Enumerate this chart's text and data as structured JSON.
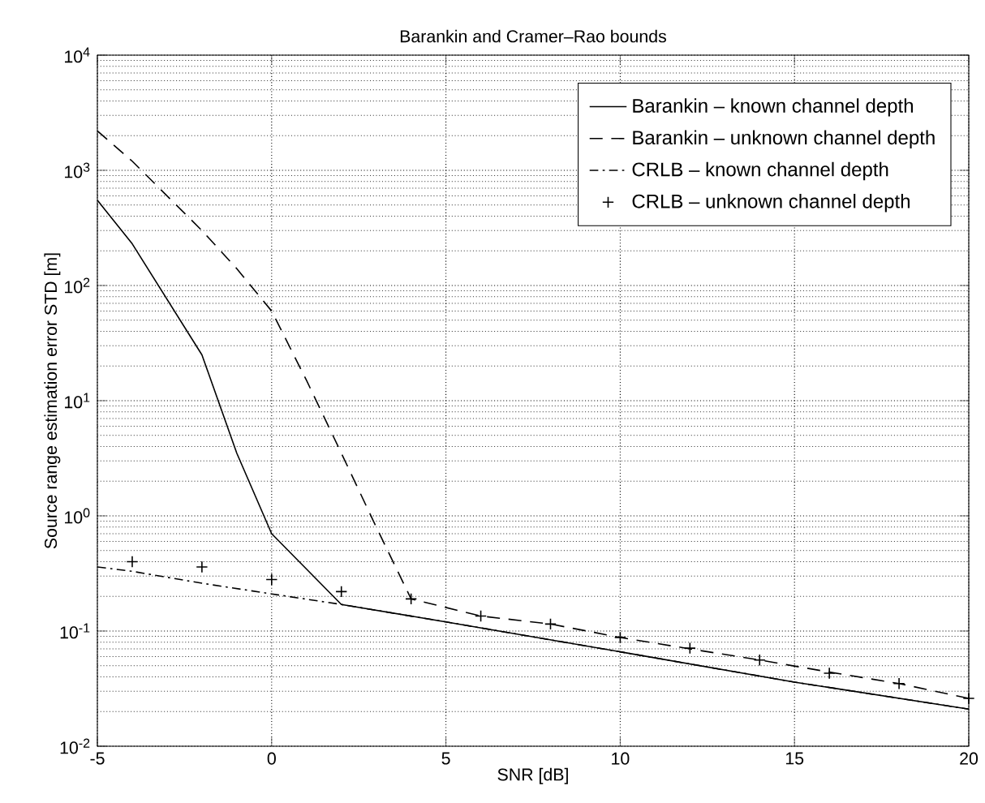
{
  "chart_data": {
    "type": "line",
    "title": "Barankin and Cramer–Rao bounds",
    "xlabel": "SNR [dB]",
    "ylabel": "Source range estimation error STD [m]",
    "xlim": [
      -5,
      20
    ],
    "xticks": [
      -5,
      0,
      5,
      10,
      15,
      20
    ],
    "ylim": [
      0.01,
      10000
    ],
    "yticks": [
      {
        "value": 0.01,
        "label": "10$^{-2}$"
      },
      {
        "value": 0.1,
        "label": "10$^{-1}$"
      },
      {
        "value": 1,
        "label": "10$^{0}$"
      },
      {
        "value": 10,
        "label": "10$^{1}$"
      },
      {
        "value": 100,
        "label": "10$^{2}$"
      },
      {
        "value": 1000,
        "label": "10$^{3}$"
      },
      {
        "value": 10000,
        "label": "10$^{4}$"
      }
    ],
    "log": "y",
    "grid": true,
    "legend": "top right",
    "series": [
      {
        "name": "Barankin – known channel depth",
        "color": "#000000",
        "line_style": "solid",
        "x": [
          -5,
          -4,
          -2,
          -1,
          0,
          2,
          5,
          10,
          15,
          20
        ],
        "values": [
          550,
          230,
          25,
          3.5,
          0.7,
          0.17,
          0.12,
          0.066,
          0.036,
          0.021
        ]
      },
      {
        "name": "Barankin – unknown channel depth",
        "color": "#000000",
        "line_style": "dashed",
        "x": [
          -5,
          -4,
          -2,
          -1,
          0,
          1,
          2,
          3,
          4,
          6,
          8,
          10,
          12,
          14,
          16,
          18,
          20
        ],
        "values": [
          2200,
          1200,
          300,
          140,
          60,
          15,
          3.5,
          0.8,
          0.19,
          0.135,
          0.115,
          0.088,
          0.07,
          0.056,
          0.044,
          0.035,
          0.026
        ]
      },
      {
        "name": "CRLB – known channel depth",
        "color": "#000000",
        "line_style": "dashdot",
        "x": [
          -5,
          -4,
          -2,
          0,
          2,
          5,
          10,
          15,
          20
        ],
        "values": [
          0.36,
          0.33,
          0.26,
          0.21,
          0.17,
          0.12,
          0.066,
          0.036,
          0.021
        ]
      },
      {
        "name": "CRLB – unknown channel depth",
        "type": "scatter",
        "color": "#000000",
        "marker": "cross",
        "x": [
          -4,
          -2,
          0,
          2,
          4,
          6,
          8,
          10,
          12,
          14,
          16,
          18,
          20
        ],
        "values": [
          0.4,
          0.36,
          0.28,
          0.22,
          0.19,
          0.135,
          0.115,
          0.088,
          0.071,
          0.056,
          0.043,
          0.035,
          0.026
        ]
      }
    ]
  }
}
